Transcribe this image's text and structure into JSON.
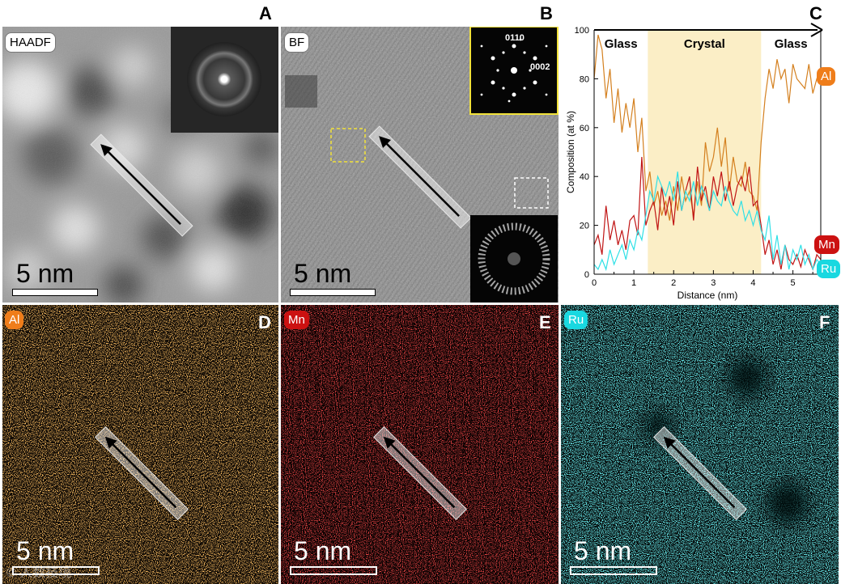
{
  "panels": {
    "a": {
      "letter": "A",
      "tag": "HAADF",
      "scale": "5 nm"
    },
    "b": {
      "letter": "B",
      "tag": "BF",
      "scale": "5 nm",
      "fft_top": {
        "l1": "0110",
        "l2": "0002"
      }
    },
    "c": {
      "letter": "C"
    },
    "d": {
      "letter": "D",
      "tag": "Al",
      "scale": "5 nm"
    },
    "e": {
      "letter": "E",
      "tag": "Mn",
      "scale": "5 nm"
    },
    "f": {
      "letter": "F",
      "tag": "Ru",
      "scale": "5 nm"
    }
  },
  "watermark": "© 人数技境",
  "colors": {
    "al": "#d4801f",
    "mn": "#c01414",
    "ru": "#2fe0e6",
    "crystal_band": "#fbeec6"
  },
  "chart_data": {
    "type": "line",
    "xlabel": "Distance (nm)",
    "ylabel": "Composition (at %)",
    "xlim": [
      0,
      5.7
    ],
    "ylim": [
      0,
      100
    ],
    "xticks": [
      0,
      1,
      2,
      3,
      4,
      5
    ],
    "yticks": [
      0,
      20,
      40,
      60,
      80,
      100
    ],
    "regions": [
      {
        "label": "Glass",
        "x": [
          0,
          1.35
        ]
      },
      {
        "label": "Crystal",
        "x": [
          1.35,
          4.2
        ]
      },
      {
        "label": "Glass",
        "x": [
          4.2,
          5.7
        ]
      }
    ],
    "series": [
      {
        "name": "Al",
        "x": [
          0,
          0.1,
          0.2,
          0.3,
          0.4,
          0.5,
          0.6,
          0.7,
          0.8,
          0.9,
          1.0,
          1.1,
          1.2,
          1.3,
          1.4,
          1.5,
          1.6,
          1.7,
          1.8,
          1.9,
          2.0,
          2.1,
          2.2,
          2.3,
          2.4,
          2.5,
          2.6,
          2.7,
          2.8,
          2.9,
          3.0,
          3.1,
          3.2,
          3.3,
          3.4,
          3.5,
          3.6,
          3.7,
          3.8,
          3.9,
          4.0,
          4.1,
          4.2,
          4.3,
          4.4,
          4.5,
          4.6,
          4.7,
          4.8,
          4.9,
          5.0,
          5.1,
          5.2,
          5.3,
          5.4,
          5.5,
          5.6,
          5.7
        ],
        "values": [
          80,
          98,
          92,
          72,
          84,
          62,
          76,
          58,
          70,
          60,
          72,
          50,
          64,
          34,
          42,
          28,
          34,
          24,
          30,
          22,
          36,
          26,
          40,
          30,
          34,
          24,
          38,
          28,
          54,
          42,
          48,
          60,
          44,
          56,
          34,
          48,
          38,
          36,
          46,
          34,
          32,
          26,
          54,
          72,
          84,
          76,
          88,
          80,
          84,
          70,
          86,
          80,
          78,
          76,
          86,
          74,
          80,
          78
        ]
      },
      {
        "name": "Mn",
        "x": [
          0,
          0.1,
          0.2,
          0.3,
          0.4,
          0.5,
          0.6,
          0.7,
          0.8,
          0.9,
          1.0,
          1.1,
          1.2,
          1.3,
          1.4,
          1.5,
          1.6,
          1.7,
          1.8,
          1.9,
          2.0,
          2.1,
          2.2,
          2.3,
          2.4,
          2.5,
          2.6,
          2.7,
          2.8,
          2.9,
          3.0,
          3.1,
          3.2,
          3.3,
          3.4,
          3.5,
          3.6,
          3.7,
          3.8,
          3.9,
          4.0,
          4.1,
          4.2,
          4.3,
          4.4,
          4.5,
          4.6,
          4.7,
          4.8,
          4.9,
          5.0,
          5.1,
          5.2,
          5.3,
          5.4,
          5.5,
          5.6,
          5.7
        ],
        "values": [
          12,
          16,
          8,
          28,
          14,
          22,
          12,
          18,
          10,
          22,
          24,
          16,
          48,
          20,
          26,
          30,
          18,
          36,
          24,
          32,
          20,
          38,
          26,
          34,
          40,
          22,
          44,
          30,
          36,
          26,
          40,
          32,
          42,
          30,
          38,
          28,
          36,
          40,
          34,
          44,
          28,
          30,
          20,
          8,
          14,
          4,
          10,
          2,
          12,
          6,
          4,
          8,
          3,
          10,
          6,
          2,
          8,
          6
        ]
      },
      {
        "name": "Ru",
        "x": [
          0,
          0.1,
          0.2,
          0.3,
          0.4,
          0.5,
          0.6,
          0.7,
          0.8,
          0.9,
          1.0,
          1.1,
          1.2,
          1.3,
          1.4,
          1.5,
          1.6,
          1.7,
          1.8,
          1.9,
          2.0,
          2.1,
          2.2,
          2.3,
          2.4,
          2.5,
          2.6,
          2.7,
          2.8,
          2.9,
          3.0,
          3.1,
          3.2,
          3.3,
          3.4,
          3.5,
          3.6,
          3.7,
          3.8,
          3.9,
          4.0,
          4.1,
          4.2,
          4.3,
          4.4,
          4.5,
          4.6,
          4.7,
          4.8,
          4.9,
          5.0,
          5.1,
          5.2,
          5.3,
          5.4,
          5.5,
          5.6,
          5.7
        ],
        "values": [
          4,
          2,
          6,
          2,
          10,
          4,
          8,
          12,
          6,
          14,
          10,
          18,
          14,
          24,
          34,
          30,
          40,
          36,
          32,
          38,
          30,
          42,
          26,
          34,
          30,
          38,
          28,
          36,
          32,
          26,
          34,
          30,
          28,
          36,
          30,
          26,
          24,
          30,
          22,
          26,
          20,
          26,
          18,
          14,
          24,
          6,
          16,
          4,
          12,
          2,
          10,
          6,
          12,
          4,
          8,
          2,
          6,
          4
        ]
      }
    ]
  }
}
